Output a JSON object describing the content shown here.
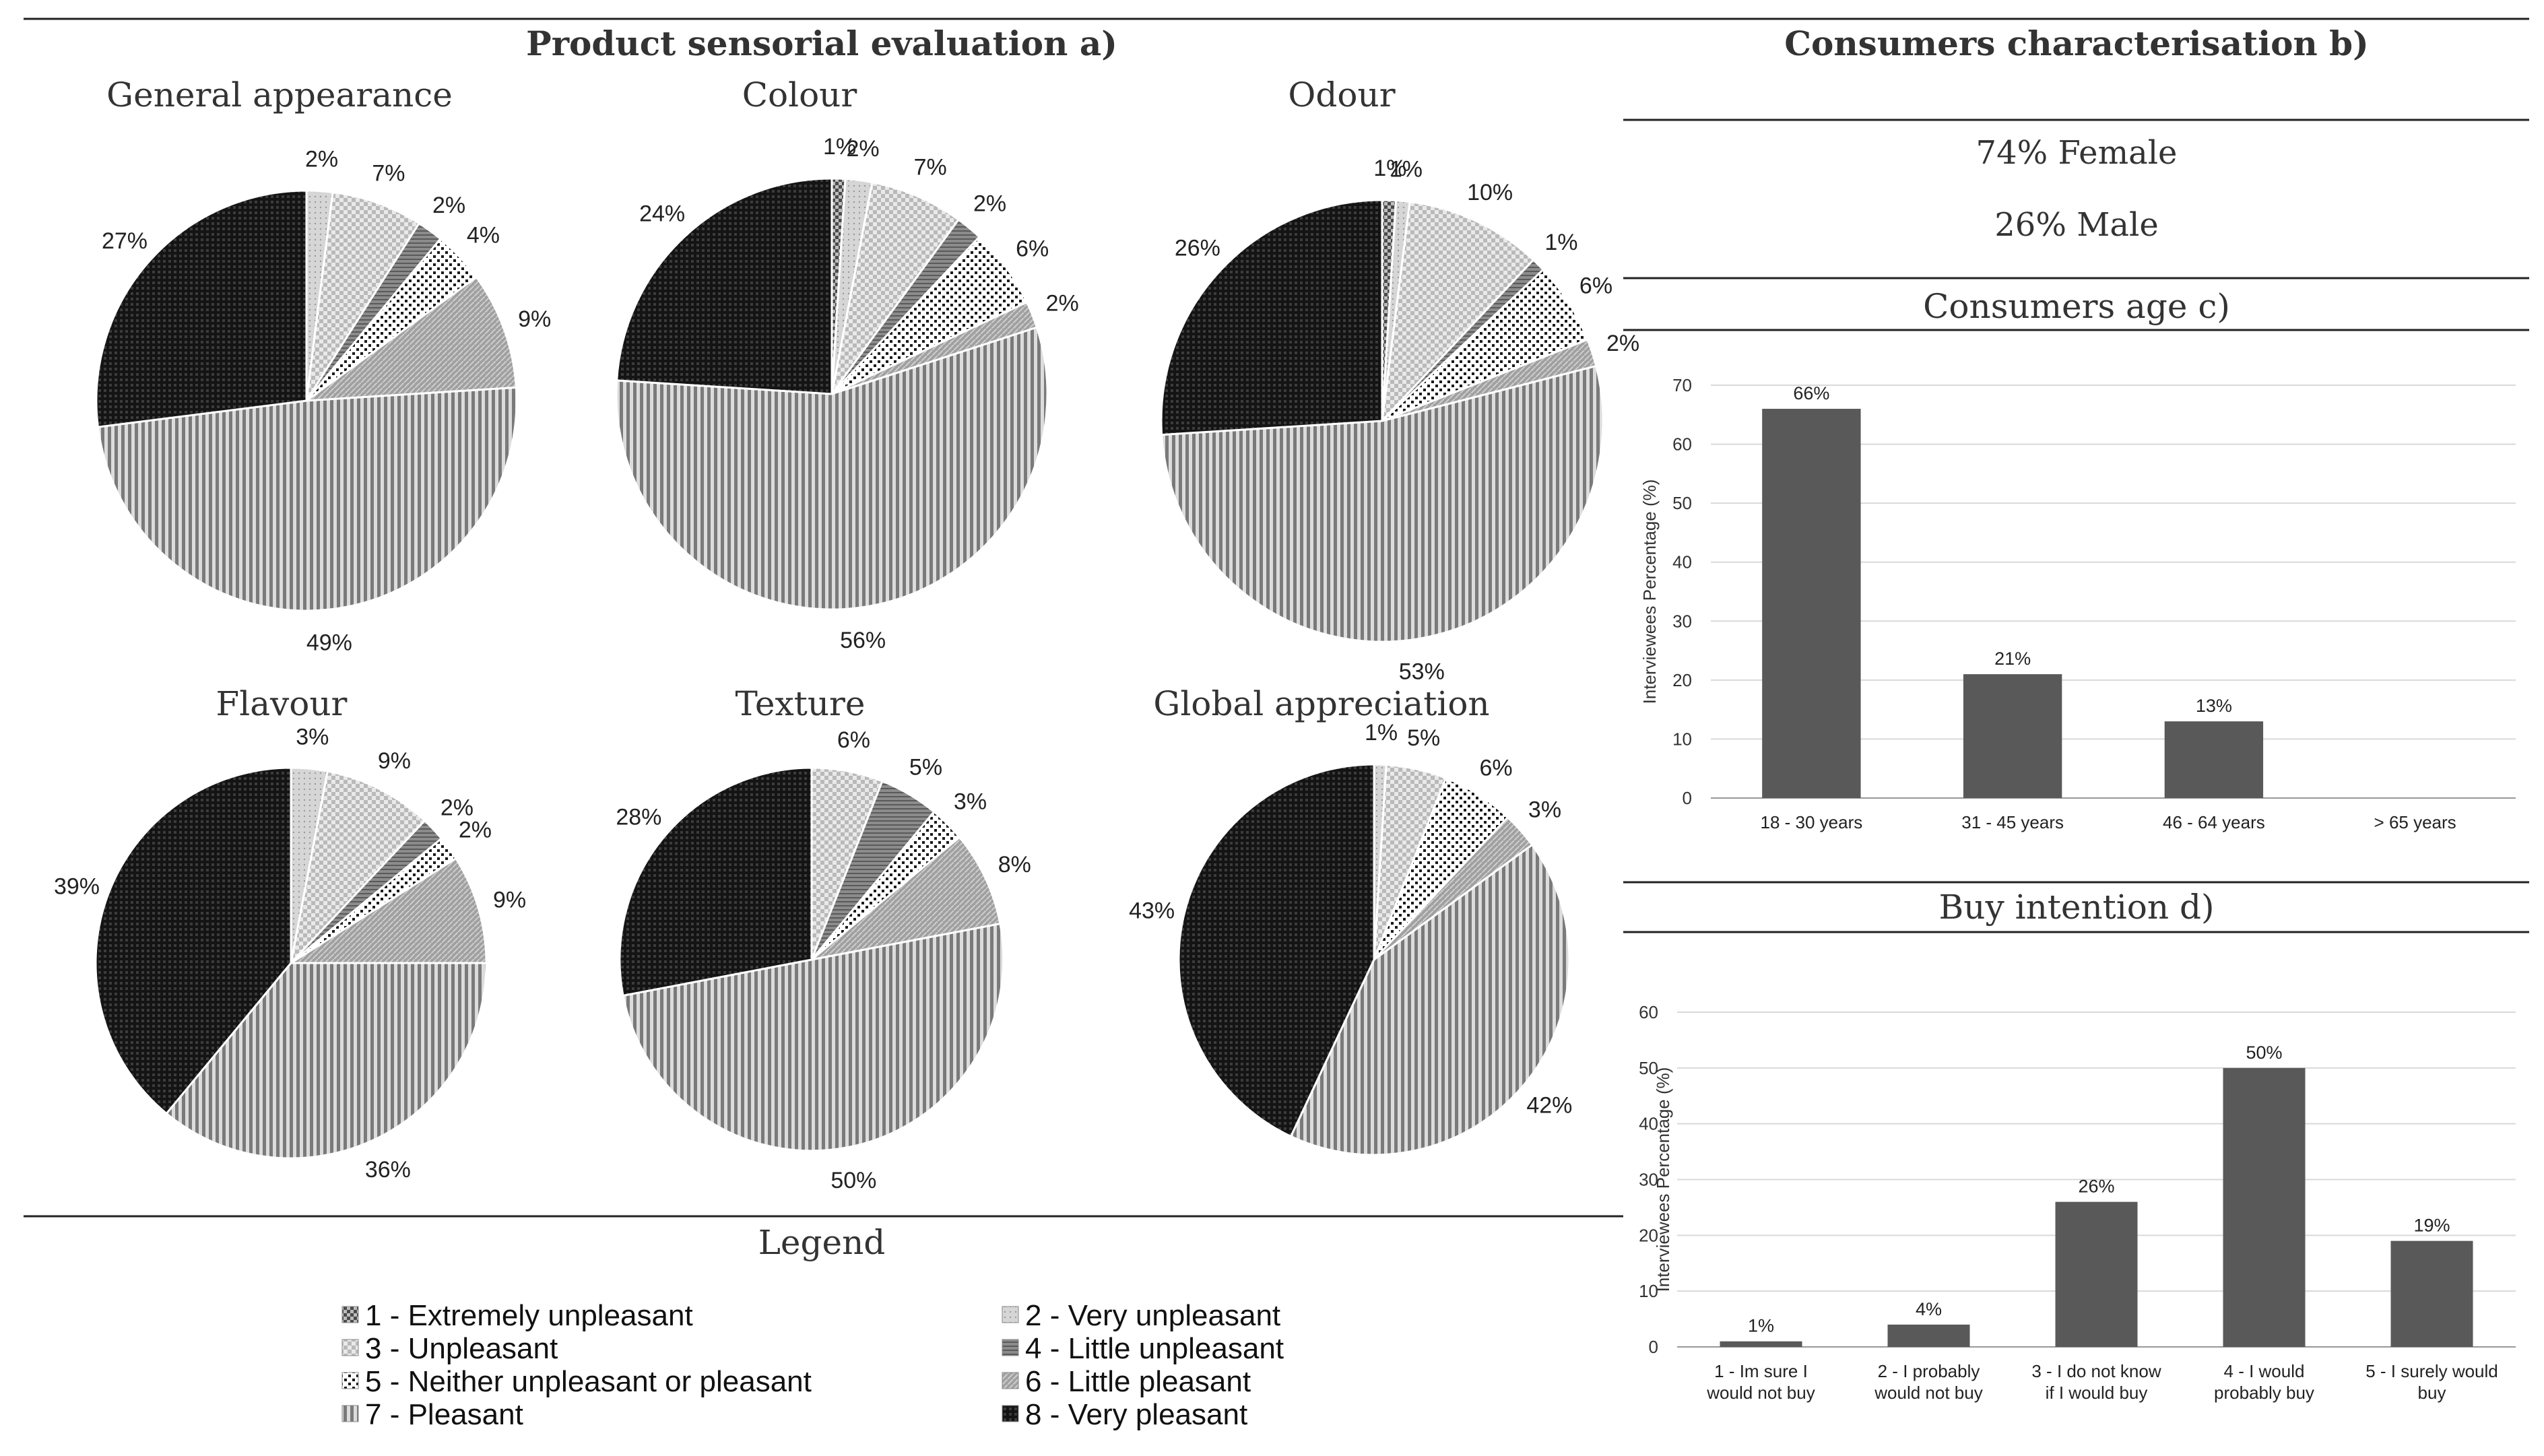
{
  "panel_a": {
    "title": "Product sensorial evaluation a)"
  },
  "panel_b": {
    "title": "Consumers characterisation b)",
    "female": "74% Female",
    "male": "26% Male"
  },
  "legend": {
    "title": "Legend",
    "items": [
      {
        "label": "1 - Extremely unpleasant",
        "color": "#6e6e6e"
      },
      {
        "label": "2 - Very unpleasant",
        "color": "#d0d0d0"
      },
      {
        "label": "3 - Unpleasant",
        "color": "#c9c9c9"
      },
      {
        "label": "4 - Little unpleasant",
        "color": "#7a7a7a"
      },
      {
        "label": "5 - Neither unpleasant or pleasant",
        "color": "#2b2b2b"
      },
      {
        "label": "6 - Little pleasant",
        "color": "#a8a8a8"
      },
      {
        "label": "7 - Pleasant",
        "color": "#8c8c8c"
      },
      {
        "label": "8 - Very pleasant",
        "color": "#1c1c1c"
      }
    ]
  },
  "chart_data": [
    {
      "type": "pie",
      "title": "General appearance",
      "labels": [
        "1 - Extremely unpleasant",
        "2 - Very unpleasant",
        "3 - Unpleasant",
        "4 - Little unpleasant",
        "5 - Neither unpleasant or pleasant",
        "6 - Little pleasant",
        "7 - Pleasant",
        "8 - Very pleasant"
      ],
      "values": [
        0,
        2,
        7,
        2,
        4,
        9,
        49,
        27
      ],
      "value_labels": [
        "",
        "2%",
        "7%",
        "2%",
        "4%",
        "9%",
        "49%",
        "27%"
      ]
    },
    {
      "type": "pie",
      "title": "Colour",
      "labels": [
        "1 - Extremely unpleasant",
        "2 - Very unpleasant",
        "3 - Unpleasant",
        "4 - Little unpleasant",
        "5 - Neither unpleasant or pleasant",
        "6 - Little pleasant",
        "7 - Pleasant",
        "8 - Very pleasant"
      ],
      "values": [
        1,
        2,
        7,
        2,
        6,
        2,
        56,
        24
      ],
      "value_labels": [
        "1%",
        "2%",
        "7%",
        "2%",
        "6%",
        "2%",
        "56%",
        "24%"
      ]
    },
    {
      "type": "pie",
      "title": "Odour",
      "labels": [
        "1 - Extremely unpleasant",
        "2 - Very unpleasant",
        "3 - Unpleasant",
        "4 - Little unpleasant",
        "5 - Neither unpleasant or pleasant",
        "6 - Little pleasant",
        "7 - Pleasant",
        "8 - Very pleasant"
      ],
      "values": [
        1,
        1,
        10,
        1,
        6,
        2,
        53,
        26
      ],
      "value_labels": [
        "1%",
        "1%",
        "10%",
        "1%",
        "6%",
        "2%",
        "53%",
        "26%"
      ]
    },
    {
      "type": "pie",
      "title": "Flavour",
      "labels": [
        "1 - Extremely unpleasant",
        "2 - Very unpleasant",
        "3 - Unpleasant",
        "4 - Little unpleasant",
        "5 - Neither unpleasant or pleasant",
        "6 - Little pleasant",
        "7 - Pleasant",
        "8 - Very pleasant"
      ],
      "values": [
        0,
        3,
        9,
        2,
        2,
        9,
        36,
        39
      ],
      "value_labels": [
        "",
        "3%",
        "9%",
        "2%",
        "2%",
        "9%",
        "36%",
        "39%"
      ]
    },
    {
      "type": "pie",
      "title": "Texture",
      "labels": [
        "1 - Extremely unpleasant",
        "2 - Very unpleasant",
        "3 - Unpleasant",
        "4 - Little unpleasant",
        "5 - Neither unpleasant or pleasant",
        "6 - Little pleasant",
        "7 - Pleasant",
        "8 - Very pleasant"
      ],
      "values": [
        0,
        0,
        6,
        5,
        3,
        8,
        50,
        28
      ],
      "value_labels": [
        "",
        "",
        "6%",
        "5%",
        "3%",
        "8%",
        "50%",
        "28%"
      ]
    },
    {
      "type": "pie",
      "title": "Global appreciation",
      "labels": [
        "1 - Extremely unpleasant",
        "2 - Very unpleasant",
        "3 - Unpleasant",
        "4 - Little unpleasant",
        "5 - Neither unpleasant or pleasant",
        "6 - Little pleasant",
        "7 - Pleasant",
        "8 - Very pleasant"
      ],
      "values": [
        0,
        1,
        5,
        0,
        6,
        3,
        42,
        43
      ],
      "value_labels": [
        "",
        "1%",
        "5%",
        "",
        "6%",
        "3%",
        "42%",
        "43%"
      ]
    },
    {
      "type": "bar",
      "title": "Consumers age c)",
      "categories": [
        "18 - 30 years",
        "31 - 45 years",
        "46 - 64 years",
        "> 65 years"
      ],
      "values": [
        66,
        21,
        13,
        0
      ],
      "value_labels": [
        "66%",
        "21%",
        "13%",
        ""
      ],
      "ylabel": "Interviewees Percentage (%)",
      "ylim": [
        0,
        70
      ],
      "yticks": [
        0,
        10,
        20,
        30,
        40,
        50,
        60,
        70
      ],
      "grid": true
    },
    {
      "type": "bar",
      "title": "Buy intention d)",
      "categories": [
        "1 - Im sure I would not buy",
        "2 - I probably would not buy",
        "3 - I do not know if I would buy",
        "4 - I would probably buy",
        "5 - I surely would buy"
      ],
      "category_lines": [
        [
          "1 - Im sure I",
          "would not buy"
        ],
        [
          "2 - I probably",
          "would not buy"
        ],
        [
          "3 - I do not know",
          "if I would buy"
        ],
        [
          "4 - I would",
          "probably buy"
        ],
        [
          "5 - I surely would",
          "buy"
        ]
      ],
      "values": [
        1,
        4,
        26,
        50,
        19
      ],
      "value_labels": [
        "1%",
        "4%",
        "26%",
        "50%",
        "19%"
      ],
      "ylabel": "Interviewees Percentage (%)",
      "ylim": [
        0,
        60
      ],
      "yticks": [
        0,
        10,
        20,
        30,
        40,
        50,
        60
      ],
      "grid": true
    }
  ]
}
